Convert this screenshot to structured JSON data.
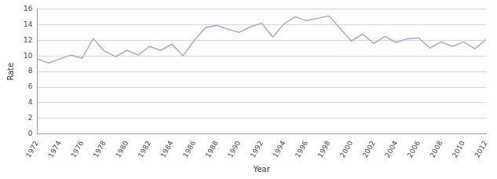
{
  "chart_data": {
    "type": "line",
    "x_label": "Year",
    "y_label": "Rate",
    "x": [
      1972,
      1973,
      1974,
      1975,
      1976,
      1977,
      1978,
      1979,
      1980,
      1981,
      1982,
      1983,
      1984,
      1985,
      1986,
      1987,
      1988,
      1989,
      1990,
      1991,
      1992,
      1993,
      1994,
      1995,
      1996,
      1997,
      1998,
      1999,
      2000,
      2001,
      2002,
      2003,
      2004,
      2005,
      2006,
      2007,
      2008,
      2009,
      2010,
      2011,
      2012
    ],
    "values": [
      9.6,
      9.1,
      9.6,
      10.1,
      9.7,
      12.2,
      10.6,
      9.9,
      10.7,
      10.1,
      11.2,
      10.7,
      11.5,
      10.0,
      12.0,
      13.6,
      13.9,
      13.4,
      13.0,
      13.7,
      14.2,
      12.4,
      14.1,
      15.0,
      14.5,
      14.8,
      15.1,
      13.5,
      11.9,
      12.8,
      11.6,
      12.5,
      11.7,
      12.2,
      12.3,
      11.0,
      11.8,
      11.2,
      11.8,
      10.9,
      12.1
    ],
    "color": "#9eaecb",
    "xlim": [
      1972,
      2012
    ],
    "xticks": [
      1972,
      1974,
      1976,
      1978,
      1980,
      1982,
      1984,
      1986,
      1988,
      1990,
      1992,
      1994,
      1996,
      1998,
      2000,
      2002,
      2004,
      2006,
      2008,
      2010,
      2012
    ],
    "ylim": [
      0,
      16
    ],
    "yticks": [
      0,
      2,
      4,
      6,
      8,
      10,
      12,
      14,
      16
    ],
    "grid": true
  }
}
